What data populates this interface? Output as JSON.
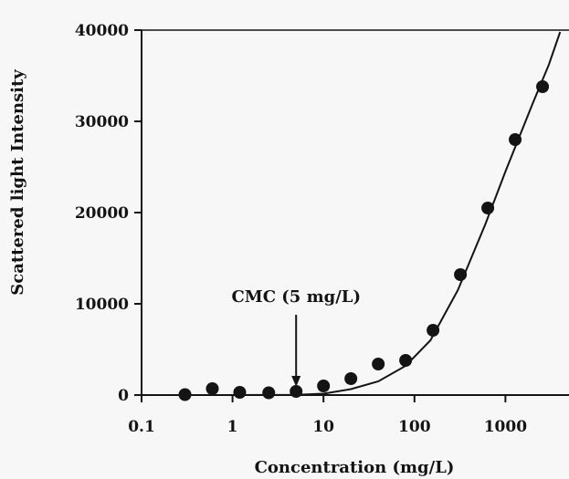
{
  "chart_data": {
    "type": "scatter",
    "title": "",
    "xlabel": "Concentration (mg/L)",
    "ylabel": "Scattered light Intensity",
    "xscale": "log",
    "xlim": [
      0.1,
      5000
    ],
    "ylim": [
      0,
      40000
    ],
    "grid": false,
    "x_ticks": [
      {
        "value": 0.1,
        "label": "0.1"
      },
      {
        "value": 1,
        "label": "1"
      },
      {
        "value": 10,
        "label": "10"
      },
      {
        "value": 100,
        "label": "100"
      },
      {
        "value": 1000,
        "label": "1000"
      }
    ],
    "y_ticks": [
      {
        "value": 0,
        "label": "0"
      },
      {
        "value": 10000,
        "label": "10000"
      },
      {
        "value": 20000,
        "label": "20000"
      },
      {
        "value": 30000,
        "label": "30000"
      },
      {
        "value": 40000,
        "label": "40000"
      }
    ],
    "series": [
      {
        "kind": "points",
        "points": [
          {
            "x": 0.3,
            "y": 50
          },
          {
            "x": 0.6,
            "y": 700
          },
          {
            "x": 1.2,
            "y": 300
          },
          {
            "x": 2.5,
            "y": 250
          },
          {
            "x": 5,
            "y": 400
          },
          {
            "x": 10,
            "y": 1000
          },
          {
            "x": 20,
            "y": 1800
          },
          {
            "x": 40,
            "y": 3400
          },
          {
            "x": 80,
            "y": 3800
          },
          {
            "x": 160,
            "y": 7100
          },
          {
            "x": 320,
            "y": 13200
          },
          {
            "x": 640,
            "y": 20500
          },
          {
            "x": 1280,
            "y": 28000
          },
          {
            "x": 2560,
            "y": 33800
          }
        ]
      },
      {
        "kind": "fit-line",
        "points": [
          {
            "x": 0.1,
            "y": 0
          },
          {
            "x": 1,
            "y": 0
          },
          {
            "x": 5,
            "y": 20
          },
          {
            "x": 10,
            "y": 150
          },
          {
            "x": 20,
            "y": 650
          },
          {
            "x": 40,
            "y": 1500
          },
          {
            "x": 80,
            "y": 3200
          },
          {
            "x": 150,
            "y": 6000
          },
          {
            "x": 300,
            "y": 11500
          },
          {
            "x": 600,
            "y": 18700
          },
          {
            "x": 1000,
            "y": 24500
          },
          {
            "x": 2000,
            "y": 32000
          },
          {
            "x": 3000,
            "y": 36200
          },
          {
            "x": 4000,
            "y": 39800
          }
        ]
      }
    ],
    "annotations": [
      {
        "text": "CMC (5 mg/L)",
        "x": 5,
        "y": 900,
        "arrow": true
      }
    ]
  }
}
